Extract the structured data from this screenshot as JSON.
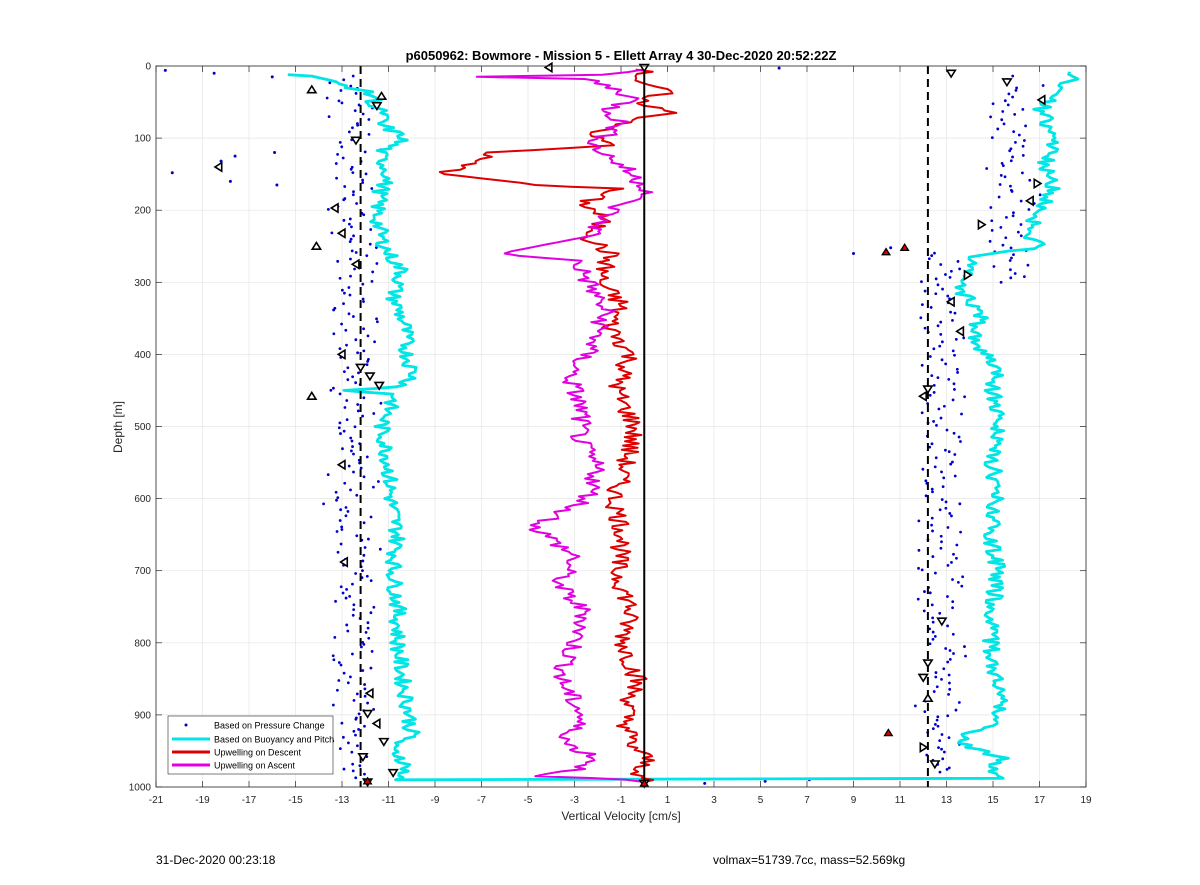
{
  "chart_data": {
    "type": "scatter",
    "title": "p6050962: Bowmore - Mission 5 - Ellett Array 4 30-Dec-2020 20:52:22Z",
    "xlabel": "Vertical Velocity [cm/s]",
    "ylabel": "Depth [m]",
    "xlim": [
      -21,
      19
    ],
    "ylim": [
      0,
      1000
    ],
    "y_reversed": true,
    "x_ticks": [
      -21,
      -19,
      -17,
      -15,
      -13,
      -11,
      -9,
      -7,
      -5,
      -3,
      -1,
      1,
      3,
      5,
      7,
      9,
      11,
      13,
      15,
      17,
      19
    ],
    "y_ticks": [
      0,
      100,
      200,
      300,
      400,
      500,
      600,
      700,
      800,
      900,
      1000
    ],
    "grid": true,
    "legend_position": "bottom-left",
    "reference_lines": {
      "zero_line": 0,
      "dashed_lines": [
        -12.2,
        12.2
      ]
    },
    "series": [
      {
        "name": "Based on Pressure Change",
        "style": "dots",
        "color": "#0000cc",
        "clusters": [
          {
            "x_center": -12.5,
            "x_spread": 1.1,
            "y_range": [
              15,
              990
            ]
          },
          {
            "x_center": 12.8,
            "x_spread": 1.0,
            "y_range": [
              260,
              980
            ]
          },
          {
            "x_center": 15.8,
            "x_spread": 1.2,
            "y_range": [
              15,
              300
            ]
          }
        ],
        "isolated_points": [
          {
            "x": -20.6,
            "y": 6
          },
          {
            "x": -18.5,
            "y": 10
          },
          {
            "x": -20.3,
            "y": 148
          },
          {
            "x": -18.2,
            "y": 132
          },
          {
            "x": -17.6,
            "y": 125
          },
          {
            "x": -17.8,
            "y": 160
          },
          {
            "x": -15.9,
            "y": 120
          },
          {
            "x": -15.8,
            "y": 165
          },
          {
            "x": -16.0,
            "y": 15
          },
          {
            "x": 5.8,
            "y": 3
          },
          {
            "x": 9.0,
            "y": 260
          },
          {
            "x": 10.6,
            "y": 252
          },
          {
            "x": 2.6,
            "y": 995
          },
          {
            "x": 5.2,
            "y": 992
          },
          {
            "x": 7.1,
            "y": 990
          }
        ]
      },
      {
        "name": "Based on Buoyancy and Pitch",
        "style": "line",
        "color": "#00e5e5",
        "points": [
          [
            -15,
            12
          ],
          [
            -14.2,
            14
          ],
          [
            -13.5,
            22
          ],
          [
            -12.2,
            33
          ],
          [
            -11.5,
            44
          ],
          [
            -11.8,
            55
          ],
          [
            -11.2,
            65
          ],
          [
            -11.4,
            80
          ],
          [
            -10.3,
            100
          ],
          [
            -11.4,
            120
          ],
          [
            -11.0,
            150
          ],
          [
            -11.4,
            180
          ],
          [
            -11.5,
            210
          ],
          [
            -11.3,
            240
          ],
          [
            -11.0,
            260
          ],
          [
            -10.4,
            285
          ],
          [
            -10.8,
            320
          ],
          [
            -10.3,
            360
          ],
          [
            -10.2,
            400
          ],
          [
            -9.9,
            430
          ],
          [
            -10.4,
            445
          ],
          [
            -13.0,
            450
          ],
          [
            -10.7,
            455
          ],
          [
            -11.3,
            500
          ],
          [
            -11.0,
            550
          ],
          [
            -10.9,
            600
          ],
          [
            -10.6,
            650
          ],
          [
            -10.8,
            700
          ],
          [
            -10.6,
            750
          ],
          [
            -10.6,
            800
          ],
          [
            -10.4,
            850
          ],
          [
            -10.1,
            900
          ],
          [
            -10.0,
            930
          ],
          [
            -11.0,
            945
          ],
          [
            -10.4,
            960
          ],
          [
            -10.2,
            975
          ],
          [
            -10.7,
            990
          ],
          [
            15.3,
            988
          ],
          [
            15.0,
            975
          ],
          [
            15.4,
            960
          ],
          [
            13.9,
            945
          ],
          [
            13.7,
            930
          ],
          [
            14.8,
            915
          ],
          [
            15.4,
            880
          ],
          [
            15.1,
            850
          ],
          [
            14.9,
            800
          ],
          [
            15.0,
            750
          ],
          [
            15.2,
            700
          ],
          [
            14.9,
            650
          ],
          [
            15.1,
            600
          ],
          [
            15.0,
            550
          ],
          [
            15.2,
            500
          ],
          [
            15.0,
            450
          ],
          [
            15.1,
            420
          ],
          [
            14.1,
            380
          ],
          [
            14.5,
            340
          ],
          [
            13.5,
            310
          ],
          [
            14.1,
            285
          ],
          [
            13.9,
            265
          ],
          [
            15.3,
            260
          ],
          [
            17.1,
            250
          ],
          [
            16.4,
            235
          ],
          [
            17.0,
            200
          ],
          [
            17.6,
            170
          ],
          [
            17.2,
            140
          ],
          [
            17.6,
            100
          ],
          [
            17.1,
            60
          ],
          [
            17.8,
            30
          ],
          [
            18.8,
            15
          ],
          [
            18.3,
            8
          ]
        ]
      },
      {
        "name": "Upwelling on Descent",
        "style": "line",
        "color": "#dd0000",
        "points": [
          [
            0,
            5
          ],
          [
            -0.2,
            20
          ],
          [
            1.0,
            38
          ],
          [
            -0.5,
            45
          ],
          [
            0.3,
            55
          ],
          [
            1.1,
            65
          ],
          [
            -0.4,
            75
          ],
          [
            -1.6,
            90
          ],
          [
            -2.7,
            92
          ],
          [
            -2.0,
            100
          ],
          [
            -1.3,
            110
          ],
          [
            -6.5,
            120
          ],
          [
            -8.6,
            150
          ],
          [
            -4.5,
            165
          ],
          [
            -1.3,
            170
          ],
          [
            -2.6,
            190
          ],
          [
            -1.8,
            210
          ],
          [
            -2.3,
            240
          ],
          [
            -1.5,
            260
          ],
          [
            -1.9,
            300
          ],
          [
            -1.0,
            330
          ],
          [
            -1.5,
            360
          ],
          [
            -0.6,
            400
          ],
          [
            -1.2,
            450
          ],
          [
            -0.4,
            500
          ],
          [
            -0.8,
            550
          ],
          [
            -1.3,
            600
          ],
          [
            -0.9,
            650
          ],
          [
            -1.2,
            700
          ],
          [
            -0.6,
            750
          ],
          [
            -0.9,
            800
          ],
          [
            -0.3,
            850
          ],
          [
            -0.8,
            900
          ],
          [
            -0.6,
            940
          ],
          [
            0.1,
            960
          ],
          [
            -0.2,
            985
          ],
          [
            0,
            993
          ]
        ]
      },
      {
        "name": "Upwelling on Ascent",
        "style": "line",
        "color": "#e000e0",
        "points": [
          [
            0,
            5
          ],
          [
            -1.8,
            12
          ],
          [
            -7.2,
            15
          ],
          [
            -2.5,
            18
          ],
          [
            -1.4,
            30
          ],
          [
            -0.4,
            45
          ],
          [
            -1.5,
            60
          ],
          [
            -1.0,
            80
          ],
          [
            -2.2,
            110
          ],
          [
            -0.9,
            140
          ],
          [
            0.3,
            175
          ],
          [
            -1.0,
            190
          ],
          [
            -1.9,
            215
          ],
          [
            -2.2,
            235
          ],
          [
            -6.2,
            260
          ],
          [
            -2.9,
            270
          ],
          [
            -2.4,
            300
          ],
          [
            -1.7,
            340
          ],
          [
            -2.1,
            380
          ],
          [
            -3.2,
            430
          ],
          [
            -2.7,
            480
          ],
          [
            -2.8,
            520
          ],
          [
            -2.0,
            560
          ],
          [
            -2.4,
            600
          ],
          [
            -4.7,
            640
          ],
          [
            -3.0,
            680
          ],
          [
            -3.7,
            720
          ],
          [
            -2.5,
            760
          ],
          [
            -3.0,
            800
          ],
          [
            -3.6,
            850
          ],
          [
            -2.7,
            900
          ],
          [
            -3.4,
            940
          ],
          [
            -2.0,
            960
          ],
          [
            -2.8,
            975
          ],
          [
            -4.3,
            985
          ],
          [
            -1.0,
            990
          ],
          [
            0,
            993
          ]
        ]
      }
    ],
    "markers": [
      {
        "x": -4.1,
        "y": 2,
        "dir": "left"
      },
      {
        "x": 0,
        "y": 2,
        "dir": "down"
      },
      {
        "x": 13.2,
        "y": 10,
        "dir": "down"
      },
      {
        "x": 15.6,
        "y": 22,
        "dir": "down"
      },
      {
        "x": -14.3,
        "y": 33,
        "dir": "up"
      },
      {
        "x": -11.3,
        "y": 42,
        "dir": "up"
      },
      {
        "x": 17.1,
        "y": 47,
        "dir": "left"
      },
      {
        "x": -11.5,
        "y": 55,
        "dir": "down"
      },
      {
        "x": -12.4,
        "y": 103,
        "dir": "down"
      },
      {
        "x": -18.3,
        "y": 140,
        "dir": "left"
      },
      {
        "x": 16.9,
        "y": 163,
        "dir": "right"
      },
      {
        "x": 16.6,
        "y": 187,
        "dir": "left"
      },
      {
        "x": -13.3,
        "y": 197,
        "dir": "left"
      },
      {
        "x": 14.5,
        "y": 220,
        "dir": "right"
      },
      {
        "x": -13.0,
        "y": 232,
        "dir": "left"
      },
      {
        "x": -14.1,
        "y": 250,
        "dir": "up"
      },
      {
        "x": -12.4,
        "y": 275,
        "dir": "left"
      },
      {
        "x": 13.9,
        "y": 290,
        "dir": "right"
      },
      {
        "x": 13.2,
        "y": 327,
        "dir": "left"
      },
      {
        "x": 13.6,
        "y": 368,
        "dir": "left"
      },
      {
        "x": -13.0,
        "y": 400,
        "dir": "left"
      },
      {
        "x": -12.2,
        "y": 418,
        "dir": "down"
      },
      {
        "x": -11.8,
        "y": 430,
        "dir": "down"
      },
      {
        "x": -11.4,
        "y": 443,
        "dir": "down"
      },
      {
        "x": 12.2,
        "y": 448,
        "dir": "down"
      },
      {
        "x": -14.3,
        "y": 458,
        "dir": "up"
      },
      {
        "x": 12.0,
        "y": 458,
        "dir": "left"
      },
      {
        "x": -13.0,
        "y": 553,
        "dir": "left"
      },
      {
        "x": -12.9,
        "y": 688,
        "dir": "left"
      },
      {
        "x": 12.8,
        "y": 770,
        "dir": "down"
      },
      {
        "x": 12.2,
        "y": 828,
        "dir": "down"
      },
      {
        "x": 12.0,
        "y": 848,
        "dir": "down"
      },
      {
        "x": -11.8,
        "y": 870,
        "dir": "left"
      },
      {
        "x": 12.2,
        "y": 877,
        "dir": "up"
      },
      {
        "x": -11.9,
        "y": 898,
        "dir": "down"
      },
      {
        "x": -11.5,
        "y": 912,
        "dir": "left"
      },
      {
        "x": -11.2,
        "y": 937,
        "dir": "down"
      },
      {
        "x": 12.0,
        "y": 945,
        "dir": "right"
      },
      {
        "x": -12.1,
        "y": 958,
        "dir": "down"
      },
      {
        "x": 12.5,
        "y": 968,
        "dir": "down"
      },
      {
        "x": -10.8,
        "y": 980,
        "dir": "down"
      },
      {
        "x": -11.9,
        "y": 993,
        "dir": "down"
      },
      {
        "x": 0,
        "y": 995,
        "dir": "down"
      }
    ],
    "red_markers": [
      {
        "x": 10.4,
        "y": 258
      },
      {
        "x": 11.2,
        "y": 252
      },
      {
        "x": 10.5,
        "y": 925
      },
      {
        "x": -11.9,
        "y": 992
      },
      {
        "x": 0,
        "y": 995
      }
    ]
  },
  "footer": {
    "timestamp": "31-Dec-2020 00:23:18",
    "config": "volmax=51739.7cc, mass=52.569kg"
  }
}
